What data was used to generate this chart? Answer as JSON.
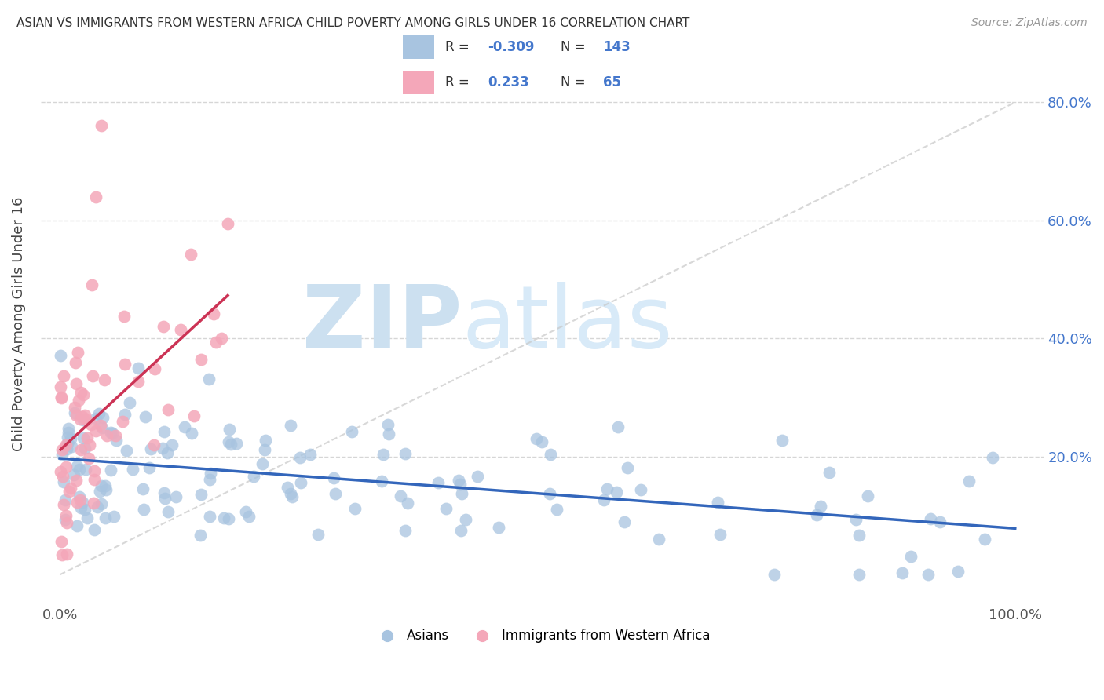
{
  "title": "ASIAN VS IMMIGRANTS FROM WESTERN AFRICA CHILD POVERTY AMONG GIRLS UNDER 16 CORRELATION CHART",
  "source": "Source: ZipAtlas.com",
  "ylabel": "Child Poverty Among Girls Under 16",
  "xlabel": "",
  "color_asian": "#a8c4e0",
  "color_pink": "#f4a7b9",
  "color_blue_line": "#3366bb",
  "color_pink_line": "#cc3355",
  "watermark_zip": "ZIP",
  "watermark_atlas": "atlas",
  "watermark_color_zip": "#cce0f0",
  "watermark_color_atlas": "#d8eaf8",
  "background_color": "#ffffff",
  "legend_r1_val": "-0.309",
  "legend_n1_val": "143",
  "legend_r2_val": "0.233",
  "legend_n2_val": "65",
  "ytick_vals": [
    0,
    20,
    40,
    60,
    80
  ],
  "ytick_labels_right": [
    "",
    "20.0%",
    "40.0%",
    "60.0%",
    "80.0%"
  ],
  "xtick_vals": [
    0,
    100
  ],
  "xtick_labels": [
    "0.0%",
    "100.0%"
  ]
}
